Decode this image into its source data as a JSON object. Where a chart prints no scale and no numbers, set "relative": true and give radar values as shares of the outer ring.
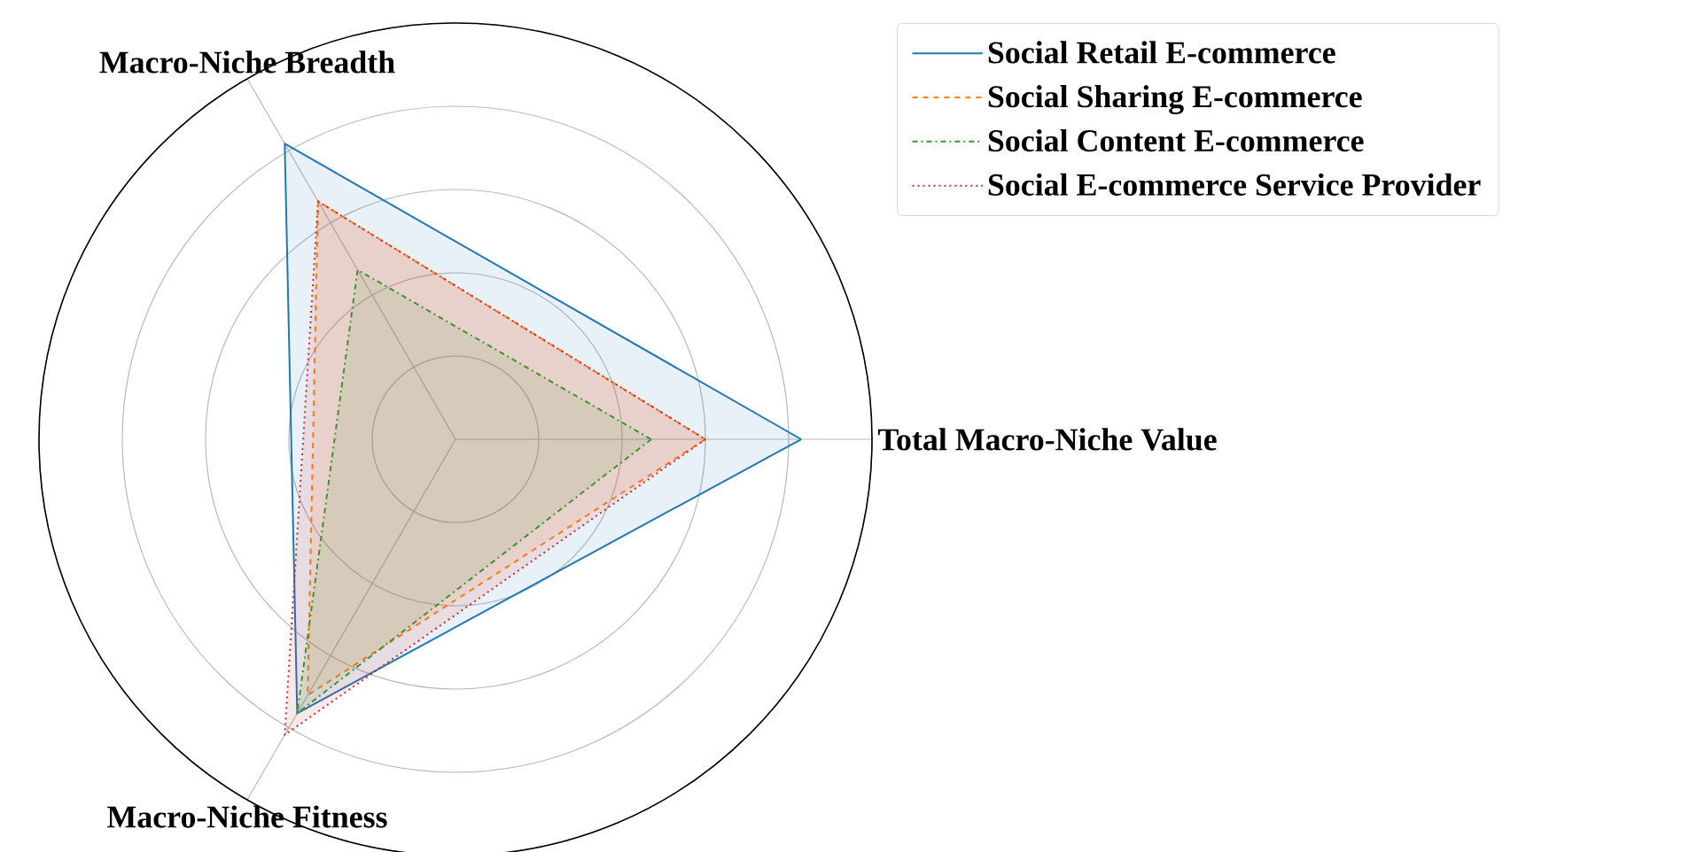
{
  "chart_data": {
    "type": "radar",
    "relative": true,
    "categories": [
      "Total Macro-Niche Value",
      "Macro-Niche Fitness",
      "Macro-Niche Breadth"
    ],
    "series": [
      {
        "name": "Social Retail E-commerce",
        "color": "#1f77b4",
        "line_style": "solid",
        "values": [
          0.83,
          0.76,
          0.82
        ]
      },
      {
        "name": "Social Sharing E-commerce",
        "color": "#ff7f0e",
        "line_style": "dashed",
        "values": [
          0.6,
          0.71,
          0.66
        ]
      },
      {
        "name": "Social Content E-commerce",
        "color": "#2ca02c",
        "line_style": "dashdot",
        "values": [
          0.47,
          0.76,
          0.47
        ]
      },
      {
        "name": "Social E-commerce Service Provider",
        "color": "#d62728",
        "line_style": "dotted",
        "values": [
          0.6,
          0.82,
          0.66
        ]
      }
    ],
    "grid": true,
    "legend": "top right"
  }
}
